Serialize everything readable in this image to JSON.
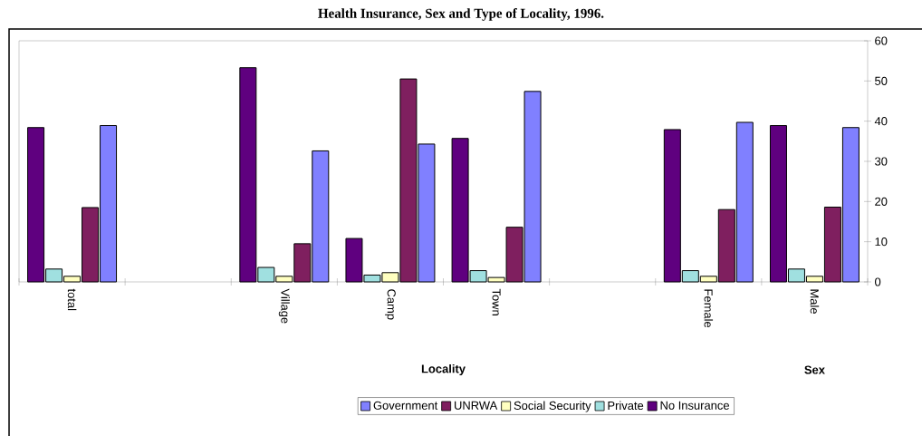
{
  "chart_data": {
    "type": "bar",
    "title": "Health Insurance, Sex and Type of Locality, 1996.",
    "categories": [
      "total",
      null,
      "Village",
      "Camp",
      "Town",
      null,
      "Female",
      "Male"
    ],
    "series": [
      {
        "name": "No Insurance",
        "color": "#5f007f",
        "values": [
          38.4,
          null,
          53.3,
          10.8,
          35.7,
          null,
          37.9,
          38.9
        ]
      },
      {
        "name": "Private",
        "color": "#a0e0e0",
        "values": [
          3.2,
          null,
          3.6,
          1.7,
          2.8,
          null,
          2.8,
          3.2
        ]
      },
      {
        "name": "Social Security",
        "color": "#ffffc0",
        "values": [
          1.4,
          null,
          1.4,
          2.3,
          1.1,
          null,
          1.4,
          1.4
        ]
      },
      {
        "name": "UNRWA",
        "color": "#7f1f5f",
        "values": [
          18.5,
          null,
          9.5,
          50.5,
          13.6,
          null,
          18.0,
          18.6
        ]
      },
      {
        "name": "Government",
        "color": "#8080ff",
        "values": [
          38.9,
          null,
          32.6,
          34.3,
          47.4,
          null,
          39.7,
          38.4
        ]
      }
    ],
    "ylim": [
      0,
      60
    ],
    "yticks": [
      0,
      10,
      20,
      30,
      40,
      50,
      60
    ],
    "annotations": [
      "Locality",
      "Sex"
    ],
    "legend": "bottom",
    "grid": false
  }
}
